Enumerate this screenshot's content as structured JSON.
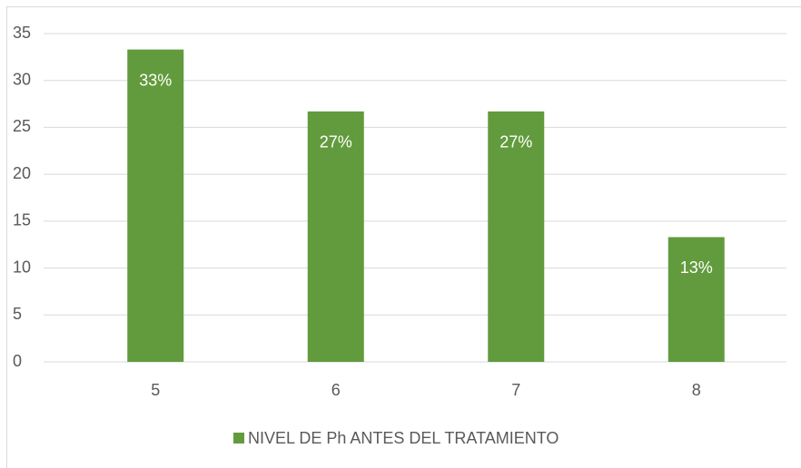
{
  "chart_data": {
    "type": "bar",
    "categories": [
      "5",
      "6",
      "7",
      "8"
    ],
    "series": [
      {
        "name": "NIVEL DE Ph ANTES DEL TRATAMIENTO",
        "color": "#629b3d",
        "values": [
          33.3,
          26.7,
          26.7,
          13.3
        ],
        "value_labels": [
          "33%",
          "27%",
          "27%",
          "13%"
        ]
      }
    ],
    "ylim": [
      0,
      35
    ],
    "yticks": [
      0,
      5,
      10,
      15,
      20,
      25,
      30,
      35
    ],
    "grid": true,
    "legend": "bottom"
  }
}
